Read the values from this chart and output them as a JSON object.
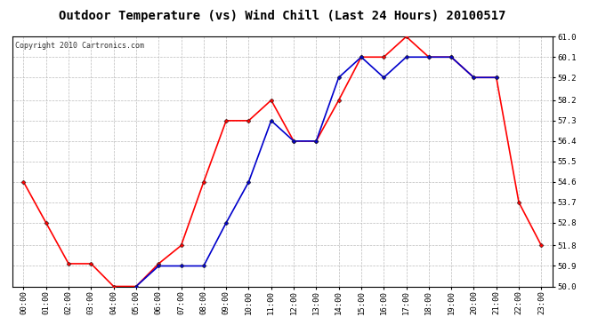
{
  "title": "Outdoor Temperature (vs) Wind Chill (Last 24 Hours) 20100517",
  "copyright": "Copyright 2010 Cartronics.com",
  "hours": [
    "00:00",
    "01:00",
    "02:00",
    "03:00",
    "04:00",
    "05:00",
    "06:00",
    "07:00",
    "08:00",
    "09:00",
    "10:00",
    "11:00",
    "12:00",
    "13:00",
    "14:00",
    "15:00",
    "16:00",
    "17:00",
    "18:00",
    "19:00",
    "20:00",
    "21:00",
    "22:00",
    "23:00"
  ],
  "temp": [
    54.6,
    52.8,
    51.0,
    51.0,
    50.0,
    50.0,
    51.0,
    51.8,
    54.6,
    57.3,
    57.3,
    58.2,
    56.4,
    56.4,
    58.2,
    60.1,
    60.1,
    61.0,
    60.1,
    60.1,
    59.2,
    59.2,
    53.7,
    51.8
  ],
  "windchill": [
    null,
    null,
    null,
    null,
    null,
    50.0,
    50.9,
    50.9,
    50.9,
    52.8,
    54.6,
    57.3,
    56.4,
    56.4,
    59.2,
    60.1,
    59.2,
    60.1,
    60.1,
    60.1,
    59.2,
    59.2,
    null,
    null
  ],
  "temp_color": "#ff0000",
  "windchill_color": "#0000cc",
  "bg_color": "#ffffff",
  "plot_bg_color": "#ffffff",
  "grid_color": "#bbbbbb",
  "ylim": [
    50.0,
    61.0
  ],
  "yticks": [
    50.0,
    50.9,
    51.8,
    52.8,
    53.7,
    54.6,
    55.5,
    56.4,
    57.3,
    58.2,
    59.2,
    60.1,
    61.0
  ],
  "title_fontsize": 10,
  "copyright_fontsize": 6,
  "tick_fontsize": 6.5,
  "marker": "D",
  "marker_size": 2.5,
  "line_width": 1.2
}
